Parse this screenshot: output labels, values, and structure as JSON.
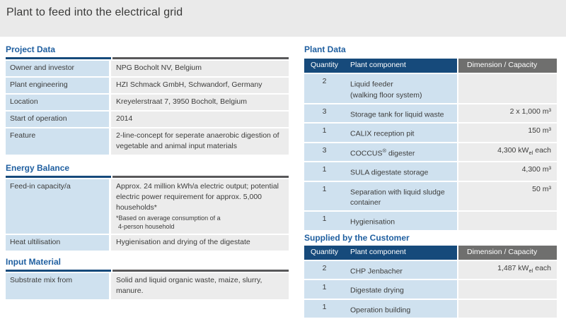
{
  "title": "Plant to feed into the electrical grid",
  "colors": {
    "band_gray": "#EAEAEA",
    "dark_blue": "#164A7B",
    "heading_blue": "#1F5FA0",
    "header_gray": "#6F6F6E",
    "cell_blue": "#CFE1EF",
    "cell_gray": "#ECECEC",
    "text": "#3C3C3B"
  },
  "left": {
    "project": {
      "heading": "Project Data",
      "rows": [
        {
          "label": "Owner and investor",
          "value": "NPG Bocholt NV, Belgium"
        },
        {
          "label": "Plant engineering",
          "value": "HZI Schmack GmbH, Schwandorf, Germany"
        },
        {
          "label": "Location",
          "value": "Kreyelerstraat 7, 3950 Bocholt, Belgium"
        },
        {
          "label": "Start of operation",
          "value": "2014"
        },
        {
          "label": "Feature",
          "value": "2-line-concept for seperate anaerobic digestion of vegetable and animal input materials"
        }
      ]
    },
    "energy": {
      "heading": "Energy Balance",
      "rows": [
        {
          "label": "Feed-in capacity/a",
          "value": "Approx. 24 million kWh/a electric output; potential electric power requirement for approx. 5,000 households*",
          "footnote1": "*Based on average consumption of a",
          "footnote2": "4-person household"
        },
        {
          "label": "Heat ultilisation",
          "value": "Hygienisation and drying of the digestate"
        }
      ]
    },
    "input": {
      "heading": "Input Material",
      "rows": [
        {
          "label": "Substrate mix from",
          "value": "Solid and liquid organic waste, maize, slurry, manure."
        }
      ]
    }
  },
  "right": {
    "plant": {
      "heading": "Plant Data",
      "columns": {
        "quantity": "Quantity",
        "component": "Plant component",
        "dimension": "Dimension / Capacity"
      },
      "rows": [
        {
          "qty": "2",
          "component": "Liquid feeder",
          "component2": "(walking floor system)",
          "dim": ""
        },
        {
          "qty": "3",
          "component": "Storage tank for liquid waste",
          "dim": "2 x 1,000 m³"
        },
        {
          "qty": "1",
          "component": "CALIX reception pit",
          "dim": "150 m³"
        },
        {
          "qty": "3",
          "component": "COCCUS",
          "component_sup": "®",
          "component_post": " digester",
          "dim": "4,300 kW",
          "dim_sub": "el",
          "dim_suffix": " each"
        },
        {
          "qty": "1",
          "component": "SULA digestate storage",
          "dim": "4,300 m³"
        },
        {
          "qty": "1",
          "component": "Separation with liquid sludge",
          "component2": "container",
          "dim": "50 m³"
        },
        {
          "qty": "1",
          "component": "Hygienisation",
          "dim": ""
        }
      ]
    },
    "customer": {
      "heading": "Supplied by the Customer",
      "columns": {
        "quantity": "Quantity",
        "component": "Plant component",
        "dimension": "Dimension / Capacity"
      },
      "rows": [
        {
          "qty": "2",
          "component": "CHP Jenbacher",
          "dim": "1,487 kW",
          "dim_sub": "el",
          "dim_suffix": " each"
        },
        {
          "qty": "1",
          "component": "Digestate drying",
          "dim": ""
        },
        {
          "qty": "1",
          "component": "Operation building",
          "dim": ""
        }
      ]
    }
  }
}
